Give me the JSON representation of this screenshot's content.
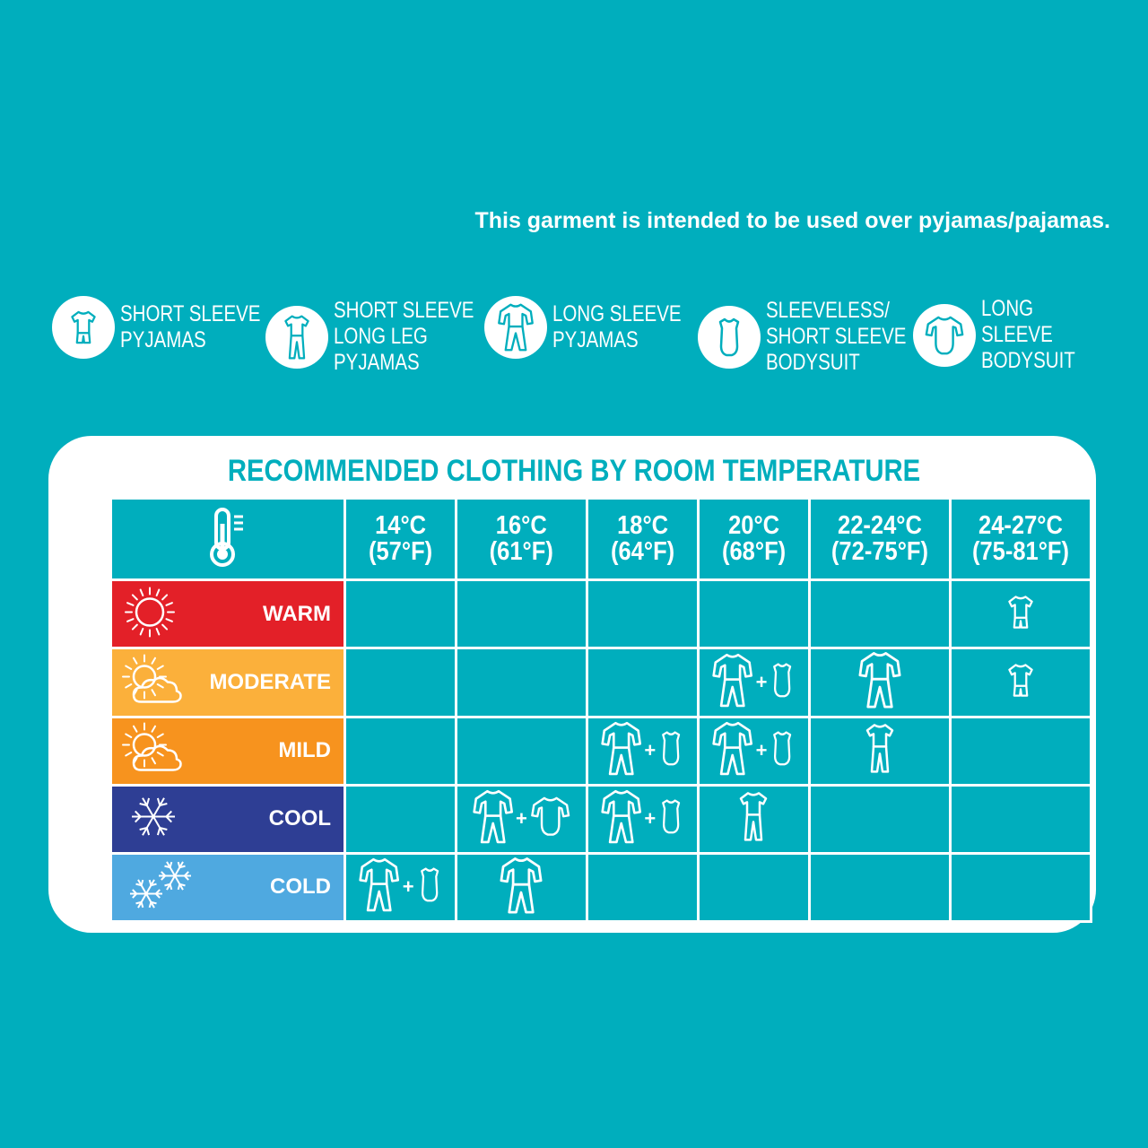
{
  "note": "This garment is intended to be used over pyjamas/pajamas.",
  "legend": [
    {
      "icon": "short-sleeve-pyjamas-icon",
      "label": "SHORT SLEEVE\nPYJAMAS"
    },
    {
      "icon": "short-sleeve-long-leg-pyjamas-icon",
      "label": "SHORT SLEEVE\nLONG LEG\nPYJAMAS"
    },
    {
      "icon": "long-sleeve-pyjamas-icon",
      "label": "LONG SLEEVE\nPYJAMAS"
    },
    {
      "icon": "sleeveless-bodysuit-icon",
      "label": "SLEEVELESS/\nSHORT SLEEVE\nBODYSUIT"
    },
    {
      "icon": "long-sleeve-bodysuit-icon",
      "label": "LONG SLEEVE\nBODYSUIT"
    }
  ],
  "title": "RECOMMENDED CLOTHING BY ROOM TEMPERATURE",
  "header_icon": "thermometer-icon",
  "temperatures": [
    {
      "c": "14°C",
      "f": "(57°F)"
    },
    {
      "c": "16°C",
      "f": "(61°F)"
    },
    {
      "c": "18°C",
      "f": "(64°F)"
    },
    {
      "c": "20°C",
      "f": "(68°F)"
    },
    {
      "c": "22-24°C",
      "f": "(72-75°F)"
    },
    {
      "c": "24-27°C",
      "f": "(75-81°F)"
    }
  ],
  "conditions": [
    {
      "label": "WARM",
      "icon": "sun-icon",
      "color": "#e32028"
    },
    {
      "label": "MODERATE",
      "icon": "sun-cloud-icon",
      "color": "#fbb03b"
    },
    {
      "label": "MILD",
      "icon": "sun-cloud-icon",
      "color": "#f7931e"
    },
    {
      "label": "COOL",
      "icon": "snowflake-icon",
      "color": "#2e3e94"
    },
    {
      "label": "COLD",
      "icon": "snowflakes-icon",
      "color": "#4fa9e0"
    }
  ],
  "cells": [
    [
      [],
      [],
      [],
      [],
      [],
      [
        "ss"
      ]
    ],
    [
      [],
      [],
      [],
      [
        "ls",
        "sb"
      ],
      [
        "ls"
      ],
      [
        "ss"
      ]
    ],
    [
      [],
      [],
      [
        "ls",
        "sb"
      ],
      [
        "ls",
        "sb"
      ],
      [
        "sl"
      ],
      []
    ],
    [
      [],
      [
        "ls",
        "lb"
      ],
      [
        "ls",
        "sb"
      ],
      [
        "sl"
      ],
      [],
      []
    ],
    [
      [
        "ls",
        "sb"
      ],
      [
        "ls"
      ],
      [],
      [],
      [],
      []
    ]
  ],
  "plus": "+"
}
